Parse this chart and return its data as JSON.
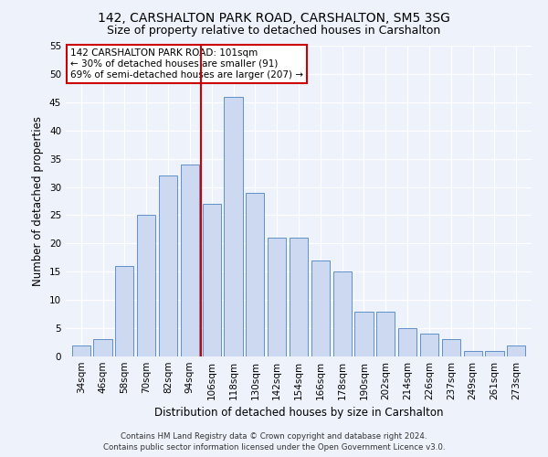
{
  "title": "142, CARSHALTON PARK ROAD, CARSHALTON, SM5 3SG",
  "subtitle": "Size of property relative to detached houses in Carshalton",
  "xlabel": "Distribution of detached houses by size in Carshalton",
  "ylabel": "Number of detached properties",
  "categories": [
    "34sqm",
    "46sqm",
    "58sqm",
    "70sqm",
    "82sqm",
    "94sqm",
    "106sqm",
    "118sqm",
    "130sqm",
    "142sqm",
    "154sqm",
    "166sqm",
    "178sqm",
    "190sqm",
    "202sqm",
    "214sqm",
    "226sqm",
    "237sqm",
    "249sqm",
    "261sqm",
    "273sqm"
  ],
  "values": [
    2,
    3,
    16,
    25,
    32,
    34,
    27,
    46,
    29,
    21,
    21,
    17,
    15,
    8,
    8,
    5,
    4,
    3,
    1,
    1,
    2
  ],
  "bar_color": "#ccd9f0",
  "bar_edge_color": "#6090c8",
  "vline_x": 5.5,
  "vline_color": "#cc0000",
  "annotation_text": "142 CARSHALTON PARK ROAD: 101sqm\n← 30% of detached houses are smaller (91)\n69% of semi-detached houses are larger (207) →",
  "annotation_box_color": "#ffffff",
  "annotation_box_edge_color": "#cc0000",
  "ylim": [
    0,
    55
  ],
  "yticks": [
    0,
    5,
    10,
    15,
    20,
    25,
    30,
    35,
    40,
    45,
    50,
    55
  ],
  "footer_line1": "Contains HM Land Registry data © Crown copyright and database right 2024.",
  "footer_line2": "Contains public sector information licensed under the Open Government Licence v3.0.",
  "bg_color": "#edf2fb",
  "plot_bg_color": "#edf2fb",
  "title_fontsize": 10,
  "subtitle_fontsize": 9,
  "xlabel_fontsize": 8.5,
  "ylabel_fontsize": 8.5,
  "tick_fontsize": 7.5,
  "annotation_fontsize": 7.5,
  "footer_fontsize": 6.2
}
